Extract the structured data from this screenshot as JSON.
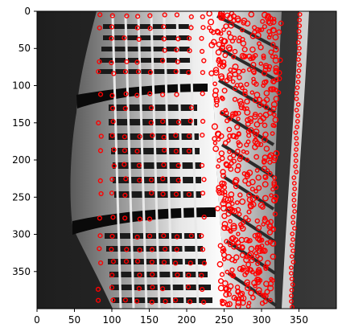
{
  "figure": {
    "x_ticks": [
      "0",
      "50",
      "100",
      "150",
      "200",
      "250",
      "300",
      "350"
    ],
    "y_ticks": [
      "0",
      "50",
      "100",
      "150",
      "200",
      "250",
      "300",
      "350"
    ],
    "x_range": [
      0,
      400
    ],
    "y_range": [
      400,
      0
    ],
    "image": "grayscale photograph of a twisting high-rise building facade",
    "marker_color": "#ff0000",
    "marker_style": "small open circles marking detected keypoints"
  }
}
